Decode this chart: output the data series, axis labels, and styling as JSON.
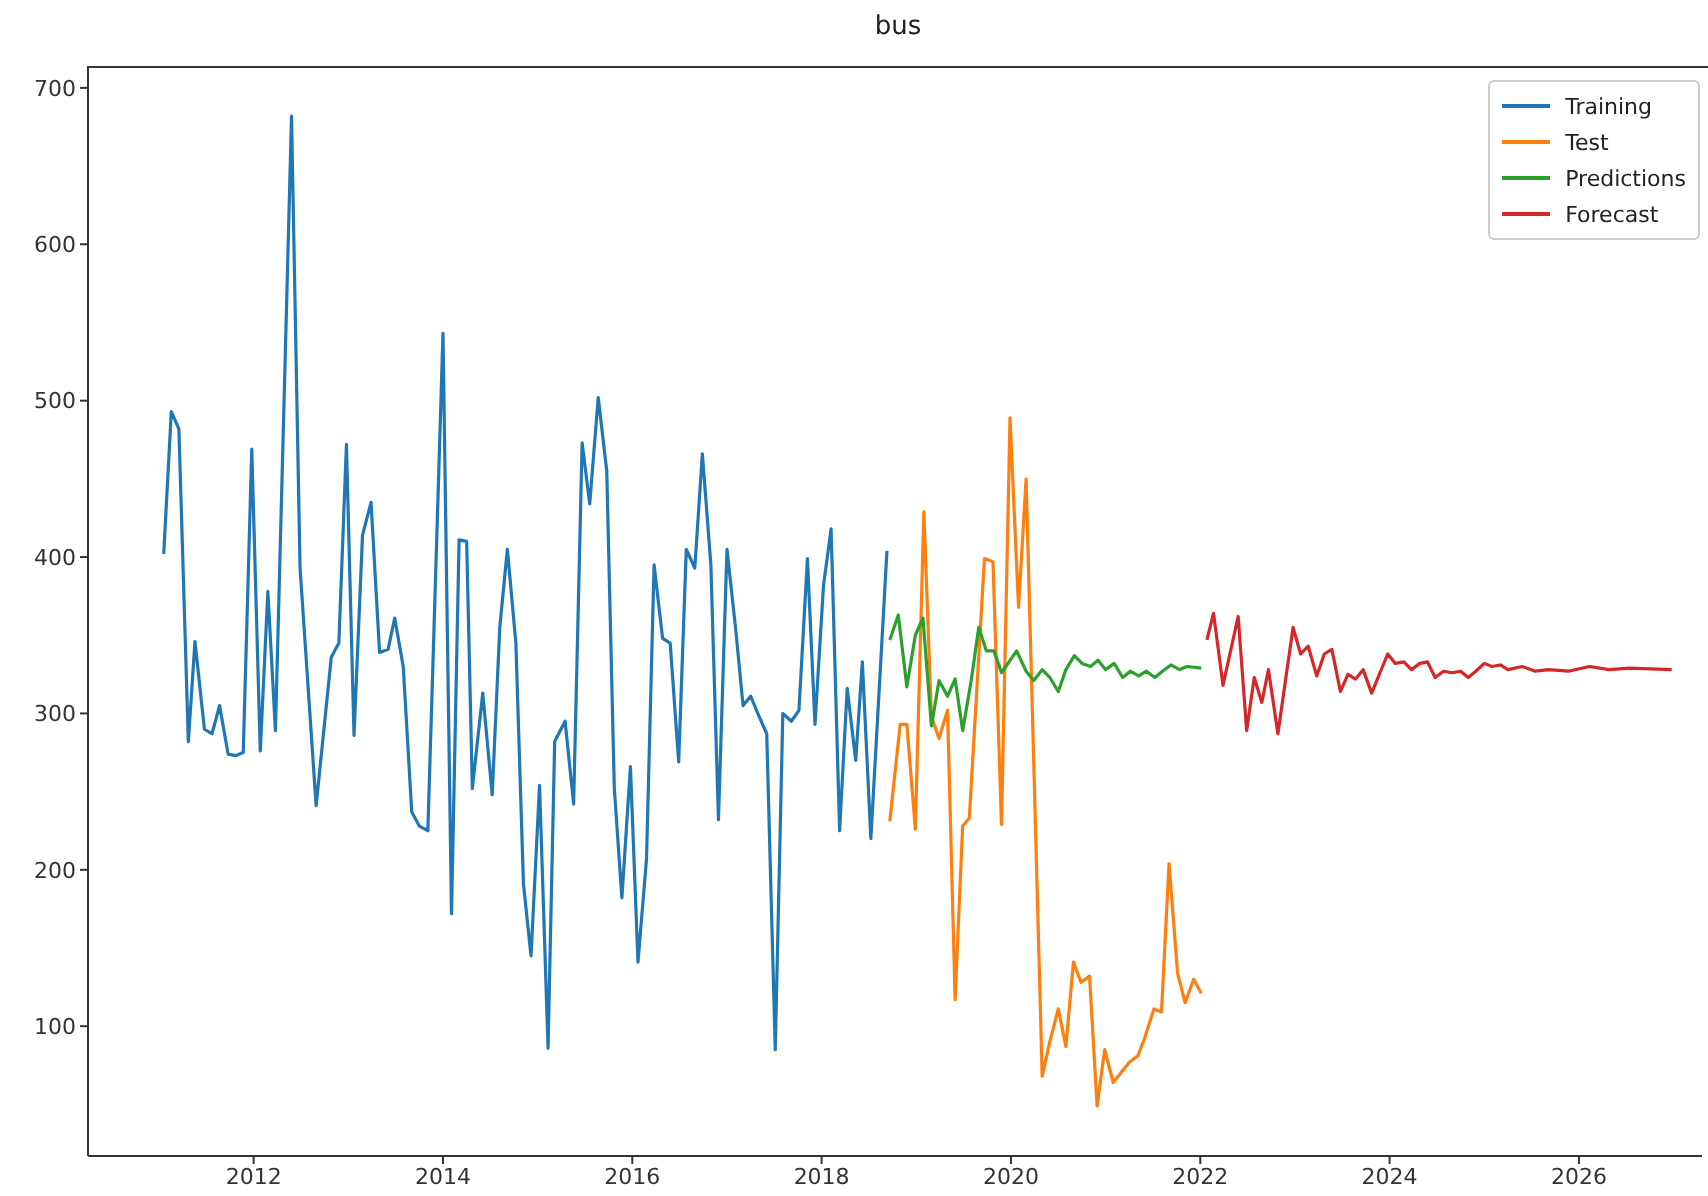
{
  "chart_data": {
    "type": "line",
    "title": "bus",
    "xlim": [
      2010.25,
      2027.3
    ],
    "xticks": [
      2012,
      2014,
      2016,
      2018,
      2020,
      2022,
      2024,
      2026
    ],
    "ylim": [
      17,
      714
    ],
    "yticks": [
      100,
      200,
      300,
      400,
      500,
      600,
      700
    ],
    "grid": false,
    "legend": "top right",
    "marker": "none",
    "line_style": "solid",
    "series": [
      {
        "name": "Training",
        "color": "#1f77b4",
        "x": [
          2011.05,
          2011.13,
          2011.21,
          2011.31,
          2011.38,
          2011.48,
          2011.56,
          2011.64,
          2011.73,
          2011.81,
          2011.89,
          2011.98,
          2012.07,
          2012.15,
          2012.23,
          2012.4,
          2012.49,
          2012.66,
          2012.82,
          2012.9,
          2012.98,
          2013.06,
          2013.15,
          2013.24,
          2013.33,
          2013.42,
          2013.49,
          2013.58,
          2013.67,
          2013.75,
          2013.84,
          2014.0,
          2014.09,
          2014.17,
          2014.25,
          2014.31,
          2014.42,
          2014.52,
          2014.6,
          2014.68,
          2014.77,
          2014.85,
          2014.93,
          2015.02,
          2015.11,
          2015.18,
          2015.29,
          2015.38,
          2015.47,
          2015.55,
          2015.64,
          2015.73,
          2015.81,
          2015.89,
          2015.98,
          2016.06,
          2016.15,
          2016.23,
          2016.32,
          2016.4,
          2016.49,
          2016.57,
          2016.66,
          2016.74,
          2016.83,
          2016.91,
          2017.0,
          2017.09,
          2017.17,
          2017.25,
          2017.34,
          2017.42,
          2017.51,
          2017.59,
          2017.68,
          2017.76,
          2017.85,
          2017.93,
          2018.02,
          2018.1,
          2018.19,
          2018.27,
          2018.36,
          2018.43,
          2018.52,
          2018.69
        ],
        "values": [
          402,
          493,
          482,
          282,
          346,
          290,
          287,
          305,
          274,
          273,
          275,
          469,
          276,
          378,
          289,
          682,
          393,
          241,
          336,
          345,
          472,
          286,
          414,
          435,
          339,
          341,
          361,
          330,
          237,
          228,
          225,
          543,
          172,
          411,
          410,
          252,
          313,
          248,
          355,
          405,
          345,
          191,
          145,
          254,
          86,
          282,
          295,
          242,
          473,
          434,
          502,
          455,
          252,
          182,
          266,
          141,
          207,
          395,
          348,
          345,
          269,
          405,
          393,
          466,
          395,
          232,
          405,
          355,
          305,
          311,
          298,
          287,
          85,
          300,
          295,
          302,
          399,
          293,
          382,
          418,
          225,
          316,
          270,
          333,
          220,
          404
        ]
      },
      {
        "name": "Test",
        "color": "#ff7f0e",
        "x": [
          2018.72,
          2018.83,
          2018.9,
          2018.99,
          2019.08,
          2019.16,
          2019.24,
          2019.33,
          2019.41,
          2019.49,
          2019.56,
          2019.72,
          2019.81,
          2019.9,
          2019.99,
          2020.08,
          2020.16,
          2020.33,
          2020.41,
          2020.5,
          2020.58,
          2020.66,
          2020.74,
          2020.83,
          2020.91,
          2020.99,
          2021.08,
          2021.16,
          2021.25,
          2021.34,
          2021.41,
          2021.51,
          2021.59,
          2021.67,
          2021.76,
          2021.84,
          2021.93,
          2022.01
        ],
        "values": [
          231,
          293,
          293,
          226,
          429,
          298,
          284,
          302,
          117,
          228,
          233,
          399,
          397,
          229,
          489,
          368,
          450,
          68,
          90,
          111,
          87,
          141,
          128,
          132,
          49,
          85,
          64,
          70,
          77,
          81,
          92,
          111,
          109,
          204,
          134,
          115,
          130,
          121
        ]
      },
      {
        "name": "Predictions",
        "color": "#2ca02c",
        "x": [
          2018.72,
          2018.81,
          2018.9,
          2018.99,
          2019.07,
          2019.16,
          2019.24,
          2019.33,
          2019.41,
          2019.49,
          2019.58,
          2019.66,
          2019.74,
          2019.82,
          2019.9,
          2020.06,
          2020.16,
          2020.24,
          2020.33,
          2020.41,
          2020.5,
          2020.58,
          2020.67,
          2020.75,
          2020.84,
          2020.92,
          2021.0,
          2021.09,
          2021.18,
          2021.26,
          2021.35,
          2021.43,
          2021.52,
          2021.6,
          2021.69,
          2021.78,
          2021.86,
          2022.01
        ],
        "values": [
          347,
          363,
          317,
          350,
          361,
          292,
          321,
          311,
          322,
          289,
          321,
          355,
          340,
          340,
          326,
          340,
          327,
          321,
          328,
          323,
          314,
          328,
          337,
          332,
          330,
          334,
          328,
          332,
          323,
          327,
          324,
          327,
          323,
          327,
          331,
          328,
          330,
          329
        ]
      },
      {
        "name": "Forecast",
        "color": "#d62728",
        "x": [
          2022.07,
          2022.14,
          2022.24,
          2022.4,
          2022.49,
          2022.57,
          2022.65,
          2022.72,
          2022.82,
          2022.98,
          2023.06,
          2023.14,
          2023.23,
          2023.31,
          2023.39,
          2023.48,
          2023.56,
          2023.64,
          2023.72,
          2023.81,
          2023.98,
          2024.06,
          2024.15,
          2024.23,
          2024.32,
          2024.4,
          2024.48,
          2024.57,
          2024.66,
          2024.75,
          2024.83,
          2024.91,
          2025.0,
          2025.08,
          2025.17,
          2025.25,
          2025.4,
          2025.54,
          2025.68,
          2025.89,
          2026.11,
          2026.32,
          2026.53,
          2026.98
        ],
        "values": [
          347,
          364,
          318,
          362,
          289,
          323,
          307,
          328,
          287,
          355,
          338,
          343,
          324,
          338,
          341,
          314,
          325,
          322,
          328,
          313,
          338,
          332,
          333,
          328,
          332,
          333,
          323,
          327,
          326,
          327,
          323,
          327,
          332,
          330,
          331,
          328,
          330,
          327,
          328,
          327,
          330,
          328,
          329,
          328
        ]
      }
    ]
  }
}
